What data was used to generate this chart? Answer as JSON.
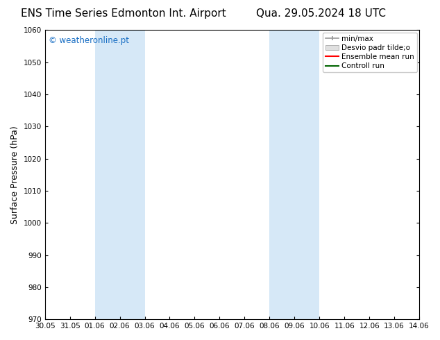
{
  "title_left": "ENS Time Series Edmonton Int. Airport",
  "title_right": "Qua. 29.05.2024 18 UTC",
  "ylabel": "Surface Pressure (hPa)",
  "ylim": [
    970,
    1060
  ],
  "yticks": [
    970,
    980,
    990,
    1000,
    1010,
    1020,
    1030,
    1040,
    1050,
    1060
  ],
  "xtick_labels": [
    "30.05",
    "31.05",
    "01.06",
    "02.06",
    "03.06",
    "04.06",
    "05.06",
    "06.06",
    "07.06",
    "08.06",
    "09.06",
    "10.06",
    "11.06",
    "12.06",
    "13.06",
    "14.06"
  ],
  "shaded_bands": [
    {
      "x_start": "01.06",
      "x_end": "03.06"
    },
    {
      "x_start": "08.06",
      "x_end": "10.06"
    }
  ],
  "shaded_color": "#d6e8f7",
  "watermark": "© weatheronline.pt",
  "watermark_color": "#1a6fc4",
  "legend_items": [
    {
      "label": "min/max",
      "color": "#aaaaaa",
      "type": "errorbar"
    },
    {
      "label": "Desvio padr tilde;o",
      "color": "#cccccc",
      "type": "bar"
    },
    {
      "label": "Ensemble mean run",
      "color": "#ff0000",
      "type": "line"
    },
    {
      "label": "Controll run",
      "color": "#006400",
      "type": "line"
    }
  ],
  "bg_color": "#ffffff",
  "plot_bg_color": "#ffffff",
  "spine_color": "#000000",
  "tick_color": "#000000",
  "title_fontsize": 11,
  "label_fontsize": 9,
  "tick_fontsize": 7.5,
  "legend_fontsize": 7.5
}
